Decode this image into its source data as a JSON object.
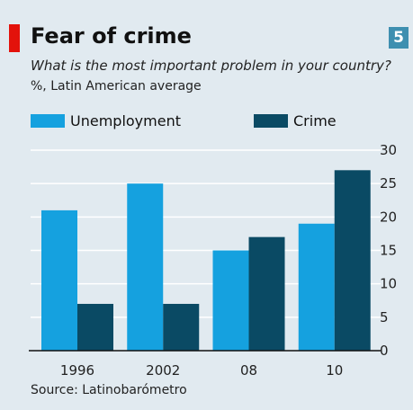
{
  "badge": "5",
  "chart_data": {
    "type": "bar",
    "title": "Fear of crime",
    "subtitle": "What is the most important problem in your country?",
    "unit_label": "%, Latin American average",
    "categories": [
      "1996",
      "2002",
      "08",
      "10"
    ],
    "series": [
      {
        "name": "Unemployment",
        "color": "#15a1df",
        "values": [
          21,
          25,
          15,
          19
        ]
      },
      {
        "name": "Crime",
        "color": "#0a4a64",
        "values": [
          7,
          7,
          17,
          27
        ]
      }
    ],
    "yticks": [
      "0",
      "5",
      "10",
      "15",
      "20",
      "25",
      "30"
    ],
    "ylim": [
      0,
      30
    ],
    "y_axis_side": "right",
    "grid": true,
    "legend_position": "top",
    "source": "Source: Latinobarómetro"
  },
  "colors": {
    "background": "#e1eaf0",
    "accent_red": "#e3120b",
    "badge_blue": "#3e8fb0",
    "grid": "#ffffff",
    "baseline": "#111111"
  }
}
